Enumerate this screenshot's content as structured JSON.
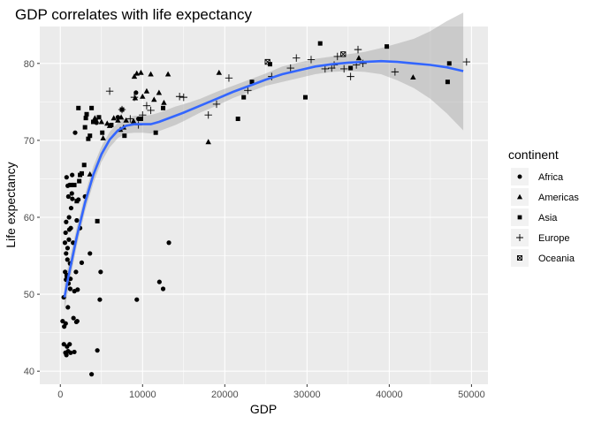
{
  "chart_data": {
    "type": "scatter",
    "title": "GDP correlates with life expectancy",
    "xlabel": "GDP",
    "ylabel": "Life expectancy",
    "xlim": [
      -2500,
      52000
    ],
    "ylim": [
      38.3,
      84.8
    ],
    "x_ticks": [
      0,
      10000,
      20000,
      30000,
      40000,
      50000
    ],
    "x_tick_labels": [
      "0",
      "10000",
      "20000",
      "30000",
      "40000",
      "50000"
    ],
    "y_ticks": [
      40,
      50,
      60,
      70,
      80
    ],
    "y_tick_labels": [
      "40",
      "50",
      "60",
      "70",
      "80"
    ],
    "grid": true,
    "legend": {
      "title": "continent",
      "position": "right",
      "entries": [
        {
          "label": "Africa",
          "shape": "circle"
        },
        {
          "label": "Americas",
          "shape": "triangle"
        },
        {
          "label": "Asia",
          "shape": "square"
        },
        {
          "label": "Europe",
          "shape": "plus"
        },
        {
          "label": "Oceania",
          "shape": "square-cross"
        }
      ]
    },
    "colors": {
      "panel": "#ebebeb",
      "grid": "#ffffff",
      "smooth_line": "#3366ff",
      "ribbon": "#999999",
      "points": "#000000"
    },
    "smooth": {
      "x": [
        500,
        1000,
        2000,
        3000,
        4000,
        5000,
        6000,
        7000,
        8000,
        9000,
        10000,
        11000,
        12000,
        13000,
        14000,
        15000,
        17000,
        19000,
        21000,
        23000,
        25000,
        27000,
        29000,
        31000,
        33000,
        35000,
        37000,
        39000,
        41000,
        43000,
        45000,
        47000,
        49000
      ],
      "y": [
        49.6,
        52.4,
        57.5,
        61.9,
        65.5,
        68.2,
        70.1,
        71.3,
        71.9,
        72.1,
        72.1,
        72.1,
        72.4,
        72.8,
        73.2,
        73.6,
        74.5,
        75.4,
        76.3,
        77.1,
        77.9,
        78.6,
        79.1,
        79.6,
        79.9,
        80.1,
        80.2,
        80.3,
        80.2,
        80.0,
        79.8,
        79.5,
        79.0
      ],
      "lower": [
        47.8,
        50.9,
        56.3,
        60.8,
        64.4,
        67.2,
        69.1,
        70.3,
        70.9,
        71.0,
        71.0,
        70.9,
        71.2,
        71.6,
        72.0,
        72.5,
        73.6,
        74.5,
        75.5,
        76.3,
        77.1,
        77.6,
        78.1,
        78.6,
        78.9,
        79.0,
        78.9,
        78.6,
        77.8,
        76.8,
        75.4,
        73.5,
        71.3
      ],
      "upper": [
        51.4,
        53.9,
        58.7,
        63.0,
        66.6,
        69.2,
        71.1,
        72.3,
        72.9,
        73.2,
        73.2,
        73.3,
        73.6,
        74.0,
        74.4,
        74.7,
        75.4,
        76.3,
        77.1,
        77.9,
        78.7,
        79.6,
        80.1,
        80.6,
        80.9,
        81.2,
        81.5,
        82.0,
        82.6,
        83.2,
        84.2,
        85.5,
        86.6
      ]
    },
    "series": [
      {
        "name": "Africa",
        "shape": "circle",
        "x": [
          277,
          415,
          430,
          470,
          560,
          580,
          620,
          640,
          650,
          690,
          700,
          710,
          740,
          760,
          780,
          800,
          820,
          860,
          880,
          900,
          920,
          940,
          980,
          1000,
          1040,
          1060,
          1090,
          1110,
          1130,
          1180,
          1200,
          1230,
          1250,
          1270,
          1310,
          1400,
          1440,
          1460,
          1550,
          1600,
          1700,
          1710,
          1800,
          1900,
          1950,
          2000,
          2050,
          2100,
          2200,
          2400,
          2600,
          3000,
          3600,
          3800,
          4400,
          4500,
          4800,
          4900,
          7000,
          9200,
          9300,
          9500,
          12050,
          12500,
          13200
        ],
        "y": [
          46.5,
          49.6,
          43.5,
          45.8,
          56.7,
          52.9,
          42.4,
          58.0,
          46.2,
          51.9,
          55.3,
          59.4,
          42.1,
          65.2,
          52.5,
          52.3,
          43.2,
          54.5,
          56.0,
          64.1,
          48.3,
          42.6,
          62.7,
          51.4,
          57.1,
          60.0,
          58.4,
          64.2,
          43.5,
          54.0,
          50.7,
          52.0,
          42.4,
          58.6,
          61.2,
          63.1,
          65.5,
          62.4,
          56.7,
          46.9,
          42.5,
          50.4,
          71.0,
          52.9,
          46.4,
          59.6,
          46.5,
          50.6,
          62.3,
          58.6,
          54.1,
          62.7,
          55.3,
          39.6,
          72.3,
          42.7,
          49.3,
          52.9,
          73.0,
          76.2,
          49.3,
          72.8,
          51.6,
          50.7,
          56.7
        ]
      },
      {
        "name": "Americas",
        "shape": "triangle",
        "x": [
          3600,
          4200,
          5000,
          5200,
          5700,
          6000,
          6500,
          7000,
          7300,
          7400,
          7700,
          8000,
          8900,
          9000,
          9100,
          9300,
          9800,
          10000,
          10500,
          11000,
          11400,
          12000,
          12600,
          13100,
          18000,
          19300,
          36300,
          42900
        ],
        "y": [
          65.6,
          72.9,
          72.4,
          70.3,
          72.2,
          71.9,
          72.9,
          72.6,
          71.4,
          73.0,
          71.7,
          72.6,
          72.5,
          78.3,
          75.5,
          78.7,
          78.8,
          75.7,
          76.4,
          78.6,
          75.3,
          76.2,
          74.9,
          78.6,
          69.8,
          78.8,
          80.7,
          78.2
        ]
      },
      {
        "name": "Asia",
        "shape": "square",
        "x": [
          1300,
          1700,
          2000,
          2200,
          2300,
          2400,
          2600,
          2900,
          3000,
          3100,
          3200,
          3400,
          3600,
          3800,
          4000,
          4300,
          4500,
          4700,
          5100,
          6200,
          7500,
          7800,
          9800,
          11600,
          12500,
          21600,
          22300,
          23300,
          25500,
          29800,
          31600,
          35300,
          39700,
          47100,
          47300
        ],
        "y": [
          64.2,
          64.2,
          62.1,
          74.2,
          64.7,
          65.5,
          65.7,
          66.8,
          71.7,
          72.9,
          73.4,
          70.2,
          70.6,
          74.2,
          72.4,
          72.6,
          59.5,
          73.0,
          71.0,
          72.0,
          74.0,
          70.6,
          72.8,
          71.0,
          74.2,
          72.8,
          75.6,
          77.6,
          79.9,
          75.6,
          82.6,
          79.4,
          82.2,
          77.6,
          80.0
        ]
      },
      {
        "name": "Europe",
        "shape": "plus",
        "x": [
          6000,
          7500,
          8500,
          9000,
          9500,
          10000,
          10500,
          11000,
          14500,
          15000,
          18000,
          19000,
          20500,
          22800,
          25700,
          28000,
          28700,
          30500,
          32200,
          33000,
          33300,
          33700,
          34500,
          35300,
          36000,
          36200,
          36800,
          40700,
          49400
        ],
        "y": [
          76.4,
          74.0,
          72.8,
          75.6,
          72.0,
          73.3,
          74.5,
          73.9,
          75.7,
          75.6,
          73.3,
          74.7,
          78.1,
          76.5,
          78.3,
          79.4,
          80.7,
          80.5,
          79.3,
          79.4,
          79.8,
          80.9,
          79.3,
          78.3,
          79.8,
          81.8,
          80.0,
          78.9,
          80.2
        ]
      },
      {
        "name": "Oceania",
        "shape": "square-cross",
        "x": [
          25200,
          34400
        ],
        "y": [
          80.2,
          81.2
        ]
      }
    ]
  }
}
